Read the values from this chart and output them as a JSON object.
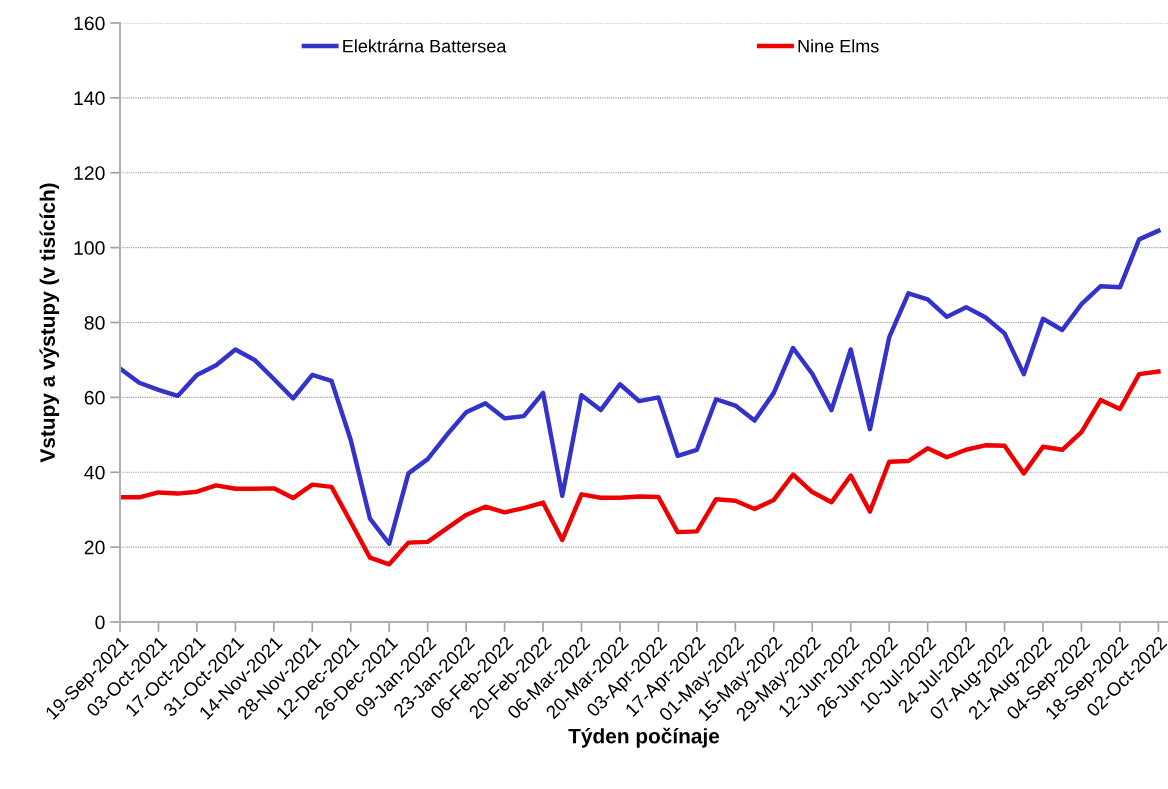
{
  "chart_data": {
    "type": "line",
    "xlabel": "Týden počínaje",
    "ylabel": "Vstupy a výstupy (v tisících)",
    "categories": [
      "19-Sep-2021",
      null,
      "03-Oct-2021",
      null,
      "17-Oct-2021",
      null,
      "31-Oct-2021",
      null,
      "14-Nov-2021",
      null,
      "28-Nov-2021",
      null,
      "12-Dec-2021",
      null,
      "26-Dec-2021",
      null,
      "09-Jan-2022",
      null,
      "23-Jan-2022",
      null,
      "06-Feb-2022",
      null,
      "20-Feb-2022",
      null,
      "06-Mar-2022",
      null,
      "20-Mar-2022",
      null,
      "03-Apr-2022",
      null,
      "17-Apr-2022",
      null,
      "01-May-2022",
      null,
      "15-May-2022",
      null,
      "29-May-2022",
      null,
      "12-Jun-2022",
      null,
      "26-Jun-2022",
      null,
      "10-Jul-2022",
      null,
      "24-Jul-2022",
      null,
      "07-Aug-2022",
      null,
      "21-Aug-2022",
      null,
      "04-Sep-2022",
      null,
      "18-Sep-2022",
      null,
      "02-Oct-2022"
    ],
    "series": [
      {
        "name": "Elektrárna Battersea",
        "color": "#3333cc",
        "values": [
          67.7,
          63.9,
          62,
          60.4,
          66,
          68.6,
          72.8,
          70,
          64.9,
          59.7,
          66,
          64.4,
          48.6,
          27.6,
          20.9,
          39.7,
          43.5,
          50,
          56,
          58.4,
          54.4,
          55,
          61.2,
          33.7,
          60.6,
          56.6,
          63.5,
          59,
          60,
          44.4,
          46,
          59.5,
          57.8,
          53.8,
          61.2,
          73.2,
          66.3,
          56.6,
          72.8,
          51.5,
          76,
          87.8,
          86.2,
          81.5,
          84.1,
          81.4,
          77.1,
          66.2,
          81,
          78,
          84.9,
          89.7,
          89.4,
          102.2,
          104.5
        ]
      },
      {
        "name": "Nine Elms",
        "color": "#ee0000",
        "values": [
          33.3,
          33.3,
          34.6,
          34.3,
          34.8,
          36.5,
          35.6,
          35.6,
          35.7,
          33.1,
          36.7,
          36.1,
          26.7,
          17.2,
          15.4,
          21.2,
          21.4,
          25,
          28.6,
          30.8,
          29.3,
          30.4,
          31.9,
          21.9,
          34.1,
          33.2,
          33.2,
          33.5,
          33.4,
          24,
          24.2,
          32.8,
          32.4,
          30.2,
          32.6,
          39.4,
          34.7,
          32,
          39.1,
          29.5,
          42.8,
          43,
          46.4,
          44,
          46,
          47.2,
          47.1,
          39.7,
          46.8,
          46,
          50.7,
          59.3,
          56.9,
          66.2,
          66.9
        ]
      }
    ],
    "ylim": [
      0,
      160
    ],
    "yticks": [
      0,
      20,
      40,
      60,
      80,
      100,
      120,
      140,
      160
    ],
    "grid": "y",
    "legend": "top",
    "marker": "none",
    "line_style": "solid"
  }
}
